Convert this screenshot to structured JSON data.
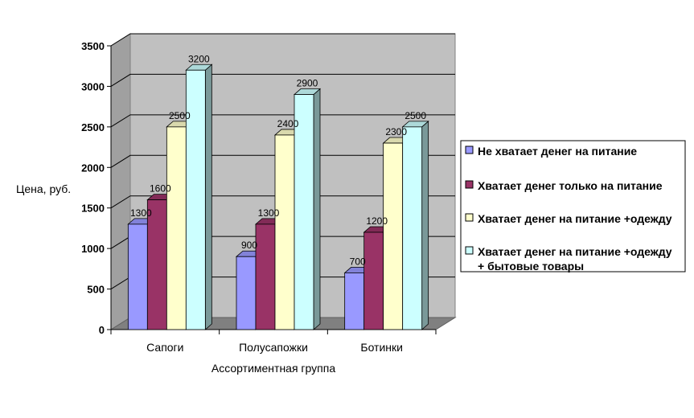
{
  "chart_data": {
    "type": "bar",
    "title": "",
    "xlabel": "Ассортиментная группа",
    "ylabel": "Цена, руб.",
    "ylim": [
      0,
      3500
    ],
    "yticks": [
      "0",
      "500",
      "1000",
      "1500",
      "2000",
      "2500",
      "3000",
      "3500"
    ],
    "grid": true,
    "legend_position": "right",
    "categories": [
      "Сапоги",
      "Полусапожки",
      "Ботинки"
    ],
    "series": [
      {
        "name": "Не хватает денег на питание",
        "values": [
          1300,
          900,
          700
        ],
        "color": "#9999ff"
      },
      {
        "name": "Хватает денег только на питание",
        "values": [
          1600,
          1300,
          1200
        ],
        "color": "#993366"
      },
      {
        "name": "Хватает денег на питание +одежду",
        "values": [
          2500,
          2400,
          2300
        ],
        "color": "#ffffcc"
      },
      {
        "name": "Хватает денег на питание +одежду + бытовые товары",
        "legend_lines": [
          "Хватает денег на питание +одежду",
          "+ бытовые товары"
        ],
        "values": [
          3200,
          2900,
          2500
        ],
        "color": "#ccffff"
      }
    ],
    "colors": {
      "wall": "#c0c0c0",
      "floor": "#808080",
      "gridline": "#000000"
    }
  }
}
